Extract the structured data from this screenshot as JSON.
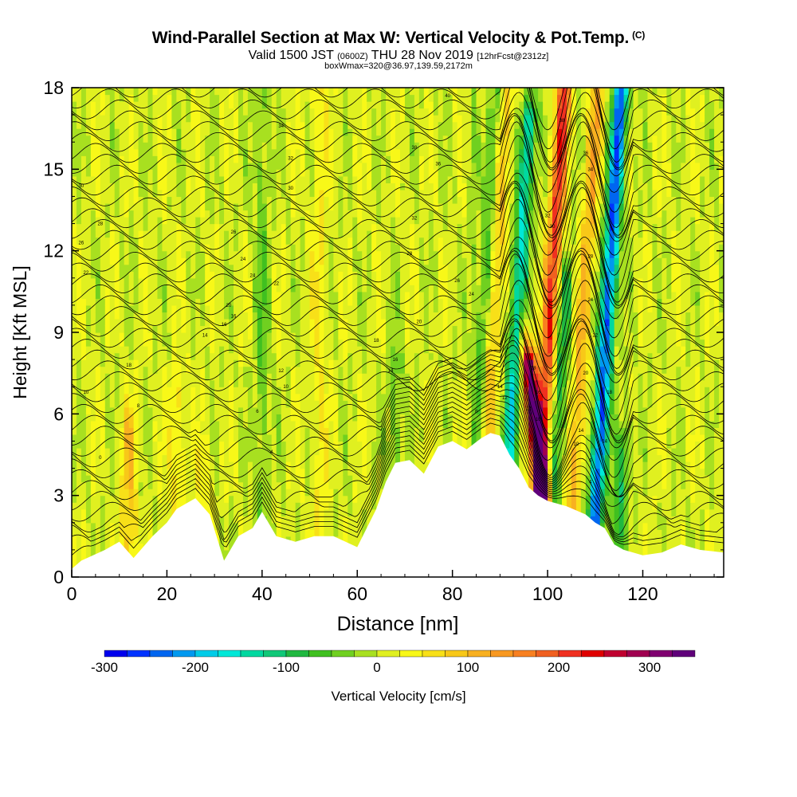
{
  "title": {
    "main": "Wind-Parallel Section at Max W: Vertical Velocity & Pot.Temp.",
    "main_mark": "(C)",
    "sub_pre": "Valid 1500 JST",
    "sub_small": "(0600Z)",
    "sub_post": "THU 28 Nov 2019",
    "sub_fcst": "[12hrFcst@2312z]",
    "sub2": "boxWmax=320@36.97,139.59,2172m"
  },
  "colors": {
    "zero": "#d2e81c",
    "terrain": "#ffffff",
    "palette": [
      "#0000ee",
      "#0033ff",
      "#0066f0",
      "#0099f0",
      "#00cce8",
      "#00e8d8",
      "#00d8a0",
      "#10c878",
      "#20b840",
      "#40c020",
      "#70d020",
      "#a8e020",
      "#e0f020",
      "#f8f818",
      "#f8e018",
      "#f8c818",
      "#f8b020",
      "#f89820",
      "#f88020",
      "#f06020",
      "#f03020",
      "#e00000",
      "#c00030",
      "#a00050",
      "#800070",
      "#60007a"
    ]
  },
  "chart_data": {
    "type": "heatmap",
    "xlabel": "Distance [nm]",
    "ylabel": "Height [Kft MSL]",
    "xlim": [
      0,
      137
    ],
    "ylim": [
      0,
      18
    ],
    "xticks": [
      0,
      20,
      40,
      60,
      80,
      100,
      120
    ],
    "yticks": [
      0,
      3,
      6,
      9,
      12,
      15,
      18
    ],
    "colorbar": {
      "label": "Vertical Velocity [cm/s]",
      "min": -300,
      "max": 350,
      "step": 25,
      "ticks": [
        -300,
        -200,
        -100,
        0,
        100,
        200,
        300
      ]
    },
    "terrain": {
      "x": [
        0,
        2,
        7,
        10,
        13,
        17,
        20,
        22,
        26,
        29,
        32,
        35,
        38,
        40,
        43,
        47,
        51,
        55,
        60,
        64,
        66,
        68,
        71,
        74,
        77,
        80,
        83,
        86,
        88,
        90,
        92,
        94,
        96,
        98,
        100,
        104,
        108,
        110,
        112,
        114,
        116,
        120,
        124,
        128,
        132,
        137
      ],
      "y": [
        0.3,
        0.6,
        1.0,
        1.3,
        0.7,
        1.5,
        2.0,
        2.5,
        2.9,
        2.3,
        0.6,
        1.5,
        1.8,
        2.4,
        1.5,
        1.3,
        1.5,
        1.5,
        1.1,
        2.5,
        3.5,
        4.2,
        4.3,
        3.8,
        4.8,
        5.0,
        4.7,
        5.1,
        5.3,
        5.2,
        4.5,
        4.0,
        3.3,
        3.0,
        2.8,
        2.6,
        2.3,
        2.0,
        1.8,
        1.2,
        1.0,
        0.8,
        0.9,
        1.2,
        1.0,
        0.9
      ]
    },
    "vertical_velocity_features": [
      {
        "x": 12,
        "z_top": 5.5,
        "w": 80
      },
      {
        "x": 22,
        "z_top": 7,
        "w": 50
      },
      {
        "x": 28,
        "z_top": 4.5,
        "w": 40
      },
      {
        "x": 40,
        "z_top": 18,
        "w": -50
      },
      {
        "x": 52,
        "z_top": 18,
        "w": 40
      },
      {
        "x": 68,
        "z_top": 8,
        "w": -60
      },
      {
        "x": 86,
        "z_top": 18,
        "w": -80
      },
      {
        "x": 88,
        "z_top": 18,
        "w": 90
      },
      {
        "x": 93,
        "z_top": 17,
        "w": -170
      },
      {
        "x": 96,
        "z_top": 8,
        "w": 320
      },
      {
        "x": 100,
        "z_top": 18,
        "w": 200
      },
      {
        "x": 103,
        "z_top": 11,
        "w": -100
      },
      {
        "x": 107,
        "z_top": 18,
        "w": 100
      },
      {
        "x": 112,
        "z_top": 18,
        "w": -260
      },
      {
        "x": 117,
        "z_top": 5,
        "w": -100
      }
    ],
    "theta_contour_labels": [
      {
        "x": 2,
        "z": 14.4,
        "text": "30"
      },
      {
        "x": 6,
        "z": 13.0,
        "text": "28"
      },
      {
        "x": 2,
        "z": 12.3,
        "text": "26"
      },
      {
        "x": 3,
        "z": 11.2,
        "text": "22"
      },
      {
        "x": 12,
        "z": 7.8,
        "text": "18"
      },
      {
        "x": 3,
        "z": 6.8,
        "text": "10"
      },
      {
        "x": 14,
        "z": 6.3,
        "text": "8"
      },
      {
        "x": 6,
        "z": 4.4,
        "text": "0"
      },
      {
        "x": 34,
        "z": 12.7,
        "text": "26"
      },
      {
        "x": 36,
        "z": 11.7,
        "text": "24"
      },
      {
        "x": 38,
        "z": 11.1,
        "text": "24"
      },
      {
        "x": 33,
        "z": 10.0,
        "text": "20"
      },
      {
        "x": 34,
        "z": 9.6,
        "text": "16"
      },
      {
        "x": 32,
        "z": 9.3,
        "text": "16"
      },
      {
        "x": 28,
        "z": 8.9,
        "text": "14"
      },
      {
        "x": 44,
        "z": 7.6,
        "text": "12"
      },
      {
        "x": 45,
        "z": 7.0,
        "text": "10"
      },
      {
        "x": 39,
        "z": 6.1,
        "text": "6"
      },
      {
        "x": 42,
        "z": 4.6,
        "text": "4"
      },
      {
        "x": 44,
        "z": 16.6,
        "text": "34"
      },
      {
        "x": 46,
        "z": 15.4,
        "text": "32"
      },
      {
        "x": 46,
        "z": 14.3,
        "text": "30"
      },
      {
        "x": 43,
        "z": 10.8,
        "text": "22"
      },
      {
        "x": 79,
        "z": 17.7,
        "text": "40"
      },
      {
        "x": 72,
        "z": 15.8,
        "text": "38"
      },
      {
        "x": 77,
        "z": 15.2,
        "text": "36"
      },
      {
        "x": 72,
        "z": 13.2,
        "text": "32"
      },
      {
        "x": 71,
        "z": 11.9,
        "text": "28"
      },
      {
        "x": 81,
        "z": 10.9,
        "text": "26"
      },
      {
        "x": 84,
        "z": 10.4,
        "text": "24"
      },
      {
        "x": 73,
        "z": 9.4,
        "text": "20"
      },
      {
        "x": 64,
        "z": 8.7,
        "text": "18"
      },
      {
        "x": 68,
        "z": 8.0,
        "text": "16"
      },
      {
        "x": 67,
        "z": 7.6,
        "text": "14"
      },
      {
        "x": 90,
        "z": 7.0,
        "text": "14"
      },
      {
        "x": 91,
        "z": 6.6,
        "text": "12"
      },
      {
        "x": 85,
        "z": 6.1,
        "text": "8"
      },
      {
        "x": 103,
        "z": 16.8,
        "text": "38"
      },
      {
        "x": 108,
        "z": 15.6,
        "text": "36"
      },
      {
        "x": 109,
        "z": 15.0,
        "text": "34"
      },
      {
        "x": 100,
        "z": 13.3,
        "text": "32"
      },
      {
        "x": 101,
        "z": 12.9,
        "text": "30"
      },
      {
        "x": 109,
        "z": 11.8,
        "text": "28"
      },
      {
        "x": 109,
        "z": 10.2,
        "text": "24"
      },
      {
        "x": 110,
        "z": 8.9,
        "text": "22"
      },
      {
        "x": 97,
        "z": 7.7,
        "text": "18"
      },
      {
        "x": 98,
        "z": 6.8,
        "text": "16"
      },
      {
        "x": 96,
        "z": 6.2,
        "text": "12"
      },
      {
        "x": 98,
        "z": 5.8,
        "text": "10"
      },
      {
        "x": 108,
        "z": 7.5,
        "text": "20"
      },
      {
        "x": 113,
        "z": 6.8,
        "text": "18"
      },
      {
        "x": 107,
        "z": 5.4,
        "text": "14"
      },
      {
        "x": 106,
        "z": 4.9,
        "text": "10"
      },
      {
        "x": 112,
        "z": 5.0,
        "text": "14"
      },
      {
        "x": 109,
        "z": 4.3,
        "text": "6"
      },
      {
        "x": 109,
        "z": 3.5,
        "text": "4"
      }
    ]
  }
}
